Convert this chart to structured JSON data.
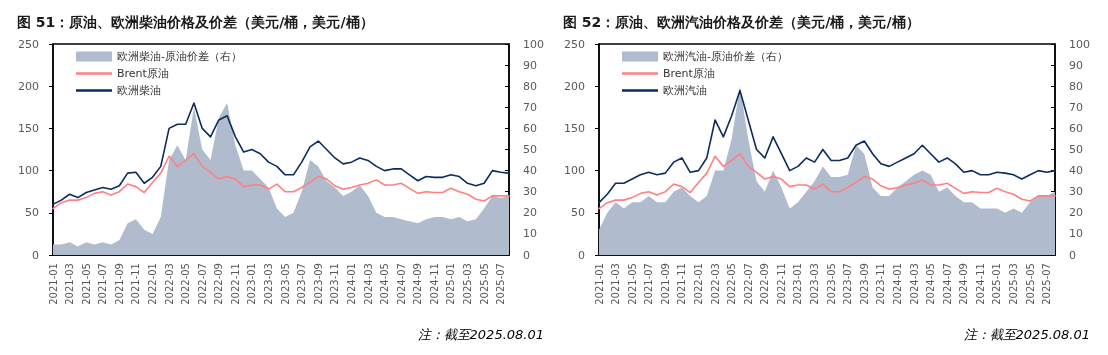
{
  "chart_data": [
    {
      "type": "line",
      "title": "图 51：原油、欧洲柴油价格及价差（美元/桶，美元/桶）",
      "annotations": [
        "注：截至2025.08.01"
      ],
      "categories": [
        "2021-01",
        null,
        "2021-03",
        null,
        "2021-05",
        null,
        "2021-07",
        null,
        "2021-09",
        null,
        "2021-11",
        null,
        "2022-01",
        null,
        "2022-03",
        null,
        "2022-05",
        null,
        "2022-07",
        null,
        "2022-09",
        null,
        "2022-11",
        null,
        "2023-01",
        null,
        "2023-03",
        null,
        "2023-05",
        null,
        "2023-07",
        null,
        "2023-09",
        null,
        "2023-11",
        null,
        "2024-01",
        null,
        "2024-03",
        null,
        "2024-05",
        null,
        "2024-07",
        null,
        "2024-09",
        null,
        "2024-11",
        null,
        "2025-01",
        null,
        "2025-03",
        null,
        "2025-05",
        null,
        "2025-07",
        null
      ],
      "series": [
        {
          "name": "欧洲柴油-原油价差（右）",
          "type": "area",
          "axis": "y2",
          "color": "#b0bccd",
          "values": [
            5,
            5,
            6,
            4,
            6,
            5,
            6,
            5,
            7,
            15,
            17,
            12,
            10,
            18,
            45,
            52,
            45,
            70,
            50,
            45,
            65,
            72,
            52,
            40,
            40,
            36,
            32,
            22,
            18,
            20,
            30,
            45,
            42,
            35,
            32,
            28,
            30,
            33,
            28,
            20,
            18,
            18,
            17,
            16,
            15,
            17,
            18,
            18,
            17,
            18,
            16,
            17,
            22,
            28,
            27,
            28
          ]
        },
        {
          "name": "Brent原油",
          "color": "#ff8080",
          "values": [
            55,
            62,
            65,
            65,
            68,
            73,
            75,
            71,
            75,
            84,
            81,
            74,
            86,
            97,
            117,
            105,
            112,
            120,
            105,
            98,
            90,
            93,
            90,
            81,
            83,
            83,
            78,
            84,
            75,
            75,
            80,
            86,
            93,
            90,
            82,
            78,
            80,
            83,
            85,
            89,
            83,
            83,
            85,
            79,
            73,
            75,
            74,
            74,
            79,
            75,
            72,
            66,
            64,
            70,
            70,
            70
          ]
        },
        {
          "name": "欧洲柴油",
          "color": "#0d2b5e",
          "values": [
            60,
            65,
            72,
            68,
            74,
            77,
            80,
            78,
            82,
            97,
            98,
            85,
            92,
            105,
            150,
            155,
            155,
            180,
            150,
            140,
            160,
            165,
            140,
            122,
            125,
            120,
            110,
            105,
            95,
            95,
            110,
            128,
            135,
            125,
            115,
            108,
            110,
            115,
            112,
            105,
            100,
            102,
            102,
            95,
            88,
            93,
            92,
            92,
            95,
            93,
            85,
            82,
            85,
            100,
            98,
            97
          ]
        }
      ],
      "ylim": [
        0,
        250
      ],
      "yticks": [
        0,
        50,
        100,
        150,
        200,
        250
      ],
      "y2lim": [
        0,
        100
      ],
      "y2ticks": [
        0,
        10,
        20,
        30,
        40,
        50,
        60,
        70,
        80,
        90,
        100
      ],
      "legend": "top left"
    },
    {
      "type": "line",
      "title": "图 52：原油、欧洲汽油价格及价差（美元/桶，美元/桶）",
      "annotations": [
        "注：截至2025.08.01"
      ],
      "categories": [
        "2021-01",
        null,
        "2021-03",
        null,
        "2021-05",
        null,
        "2021-07",
        null,
        "2021-09",
        null,
        "2021-11",
        null,
        "2022-01",
        null,
        "2022-03",
        null,
        "2022-05",
        null,
        "2022-07",
        null,
        "2022-09",
        null,
        "2022-11",
        null,
        "2023-01",
        null,
        "2023-03",
        null,
        "2023-05",
        null,
        "2023-07",
        null,
        "2023-09",
        null,
        "2023-11",
        null,
        "2024-01",
        null,
        "2024-03",
        null,
        "2024-05",
        null,
        "2024-07",
        null,
        "2024-09",
        null,
        "2024-11",
        null,
        "2025-01",
        null,
        "2025-03",
        null,
        "2025-05",
        null,
        "2025-07",
        null
      ],
      "series": [
        {
          "name": "欧洲汽油-原油价差（右）",
          "type": "area",
          "axis": "y2",
          "color": "#b0bccd",
          "values": [
            12,
            20,
            25,
            22,
            25,
            25,
            28,
            25,
            25,
            30,
            32,
            28,
            25,
            28,
            40,
            40,
            55,
            80,
            55,
            35,
            30,
            40,
            32,
            22,
            25,
            30,
            35,
            42,
            37,
            37,
            38,
            52,
            48,
            32,
            28,
            28,
            32,
            35,
            38,
            40,
            38,
            30,
            32,
            28,
            25,
            25,
            22,
            22,
            22,
            20,
            22,
            20,
            25,
            28,
            28,
            30
          ]
        },
        {
          "name": "Brent原油",
          "color": "#ff8080",
          "values": [
            55,
            62,
            65,
            65,
            68,
            73,
            75,
            71,
            75,
            84,
            81,
            74,
            86,
            97,
            117,
            105,
            112,
            120,
            105,
            98,
            90,
            93,
            90,
            81,
            83,
            83,
            78,
            84,
            75,
            75,
            80,
            86,
            93,
            90,
            82,
            78,
            80,
            83,
            85,
            89,
            83,
            83,
            85,
            79,
            73,
            75,
            74,
            74,
            79,
            75,
            72,
            66,
            64,
            70,
            70,
            70
          ]
        },
        {
          "name": "欧洲汽油",
          "color": "#0d2b5e",
          "values": [
            62,
            72,
            85,
            85,
            90,
            95,
            98,
            95,
            97,
            110,
            115,
            98,
            100,
            115,
            160,
            140,
            165,
            195,
            160,
            125,
            115,
            140,
            120,
            100,
            105,
            115,
            110,
            125,
            112,
            112,
            115,
            130,
            135,
            120,
            108,
            105,
            110,
            115,
            120,
            130,
            120,
            110,
            115,
            108,
            98,
            100,
            95,
            95,
            98,
            97,
            95,
            90,
            95,
            100,
            98,
            100
          ]
        }
      ],
      "ylim": [
        0,
        250
      ],
      "yticks": [
        0,
        50,
        100,
        150,
        200,
        250
      ],
      "y2lim": [
        0,
        100
      ],
      "y2ticks": [
        0,
        10,
        20,
        30,
        40,
        50,
        60,
        70,
        80,
        90,
        100
      ],
      "legend": "top left"
    }
  ]
}
